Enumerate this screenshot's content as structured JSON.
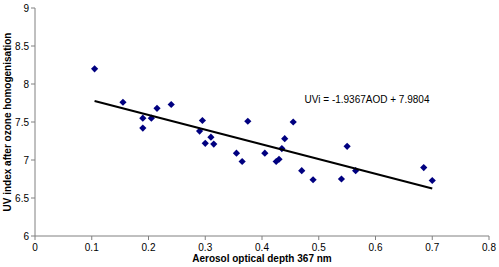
{
  "chart_data": {
    "type": "scatter",
    "x_label": "Aerosol optical depth 367 nm",
    "y_label": "UV index after ozone homogenisation",
    "annotations": [
      "UVi = -1.9367AOD + 7.9804"
    ],
    "xlim": [
      0,
      0.8
    ],
    "xticks": [
      0,
      0.1,
      0.2,
      0.3,
      0.4,
      0.5,
      0.6,
      0.7,
      0.8
    ],
    "ylim": [
      6,
      9
    ],
    "yticks": [
      6,
      6.5,
      7,
      7.5,
      8,
      8.5,
      9
    ],
    "grid": false,
    "series": [
      {
        "type": "scatter",
        "marker": "diamond",
        "color": "#000080",
        "x": [
          0.105,
          0.155,
          0.19,
          0.19,
          0.205,
          0.215,
          0.24,
          0.29,
          0.295,
          0.3,
          0.31,
          0.315,
          0.355,
          0.365,
          0.375,
          0.405,
          0.425,
          0.43,
          0.435,
          0.44,
          0.455,
          0.47,
          0.49,
          0.54,
          0.55,
          0.565,
          0.685,
          0.7
        ],
        "values": [
          8.2,
          7.76,
          7.42,
          7.55,
          7.55,
          7.68,
          7.73,
          7.38,
          7.52,
          7.22,
          7.3,
          7.21,
          7.09,
          6.98,
          7.51,
          7.09,
          6.98,
          7.01,
          7.15,
          7.28,
          7.5,
          6.86,
          6.74,
          6.75,
          7.18,
          6.86,
          6.9,
          6.73
        ]
      },
      {
        "type": "line",
        "line_style": "solid",
        "color": "#000000",
        "x": [
          0.105,
          0.7
        ],
        "values": [
          7.777,
          6.625
        ]
      }
    ]
  }
}
